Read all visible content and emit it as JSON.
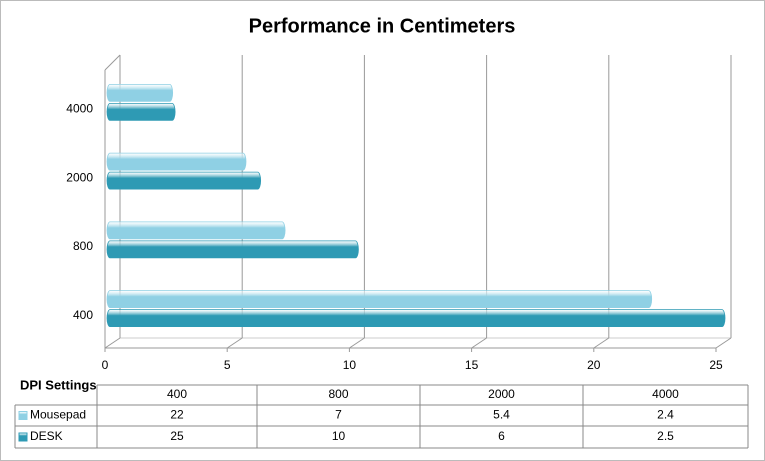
{
  "chart_data": {
    "type": "bar",
    "orientation": "horizontal",
    "title": "Performance in Centimeters",
    "category_axis_title": "DPI Settings",
    "categories": [
      "400",
      "800",
      "2000",
      "4000"
    ],
    "series": [
      {
        "name": "Mousepad",
        "color": "#8fd0e4",
        "values": [
          22,
          7,
          5.4,
          2.4
        ]
      },
      {
        "name": "DESK",
        "color": "#2e9ab4",
        "values": [
          25,
          10,
          6,
          2.5
        ]
      }
    ],
    "xlim": [
      0,
      25
    ],
    "xticks": [
      0,
      5,
      10,
      15,
      20,
      25
    ],
    "grid": true,
    "data_table": true
  }
}
